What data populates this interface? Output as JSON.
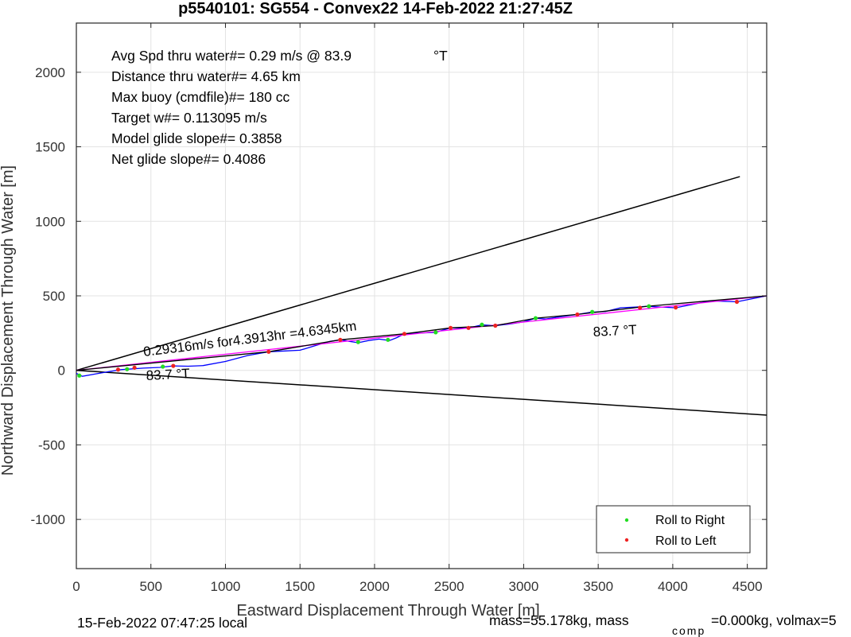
{
  "chart_data": {
    "type": "line",
    "title": "p5540101: SG554 - Convex22 14-Feb-2022 21:27:45Z",
    "xlabel": "Eastward Displacement Through Water [m]",
    "ylabel": "Northward Displacement Through Water [m]",
    "xlim": [
      0,
      4630
    ],
    "ylim": [
      -1330,
      2330
    ],
    "xticks": [
      0,
      500,
      1000,
      1500,
      2000,
      2500,
      3000,
      3500,
      4000,
      4500
    ],
    "yticks": [
      -1000,
      -500,
      0,
      500,
      1000,
      1500,
      2000
    ],
    "grid": true,
    "info_lines": [
      "Avg Spd thru water#=  0.29 m/s @  83.9",
      "Distance thru water#=  4.65 km",
      "Max buoy (cmdfile)#= 180 cc",
      "Target w#= 0.113095 m/s",
      "Model glide slope#= 0.3858",
      "Net glide slope#= 0.4086"
    ],
    "info_unit": "°T",
    "annotations": [
      {
        "text": "0.29316m/s for4.3913hr =4.6345km",
        "x": 450,
        "y": 100
      },
      {
        "text": "83.7  °T",
        "x": 470,
        "y": -60
      },
      {
        "text": "83.7  °T",
        "x": 3475,
        "y": 240
      }
    ],
    "cone_lines": [
      {
        "x": [
          0,
          4450
        ],
        "y": [
          0,
          1300
        ],
        "color": "#000000"
      },
      {
        "x": [
          0,
          4630
        ],
        "y": [
          0,
          -300
        ],
        "color": "#000000"
      }
    ],
    "series": [
      {
        "color": "#0000ff",
        "x": [
          0,
          40,
          150,
          300,
          450,
          560,
          650,
          750,
          850,
          1000,
          1150,
          1290,
          1400,
          1500,
          1600,
          1700,
          1770,
          1830,
          1890,
          1960,
          2030,
          2100,
          2150,
          2200,
          2300,
          2410,
          2510,
          2620,
          2720,
          2810,
          2900,
          3000,
          3080,
          3150,
          3250,
          3360,
          3450,
          3550,
          3650,
          3750,
          3830,
          3920,
          4020,
          4120,
          4220,
          4300,
          4430,
          4630
        ],
        "y": [
          -20,
          -40,
          -20,
          5,
          15,
          20,
          30,
          28,
          32,
          60,
          100,
          125,
          130,
          135,
          165,
          195,
          205,
          195,
          185,
          200,
          210,
          200,
          220,
          245,
          250,
          255,
          285,
          282,
          305,
          300,
          310,
          325,
          350,
          345,
          360,
          375,
          390,
          395,
          420,
          425,
          430,
          425,
          420,
          440,
          460,
          465,
          460,
          500
        ]
      },
      {
        "color": "#ff00ff",
        "x": [
          0,
          4630
        ],
        "y": [
          0,
          500
        ]
      },
      {
        "color": "#000000",
        "x": [
          0,
          1290,
          1770,
          2200,
          2510,
          2810,
          3080,
          3360,
          3830,
          4630
        ],
        "y": [
          0,
          125,
          205,
          245,
          285,
          300,
          350,
          375,
          430,
          500
        ]
      }
    ],
    "roll_right": {
      "name": "Roll to Right",
      "color": "#22dd22",
      "x": [
        20,
        340,
        580,
        1890,
        2090,
        2410,
        2720,
        3080,
        3460,
        3840
      ],
      "y": [
        -35,
        8,
        25,
        190,
        205,
        255,
        307,
        350,
        392,
        430
      ]
    },
    "roll_left": {
      "name": "Roll to Left",
      "color": "#ee2222",
      "x": [
        280,
        390,
        650,
        1290,
        1770,
        2200,
        2510,
        2630,
        2810,
        3360,
        3780,
        4020,
        4430
      ],
      "y": [
        5,
        18,
        30,
        125,
        205,
        245,
        285,
        285,
        300,
        375,
        420,
        422,
        460
      ]
    },
    "legend_position": "bottom-right"
  },
  "footer": {
    "local_time": "15-Feb-2022 07:47:25 local",
    "mass_text": "mass=55.178kg, mass",
    "comp_sub": "comp",
    "rest_text": "=0.000kg, volmax=5"
  }
}
